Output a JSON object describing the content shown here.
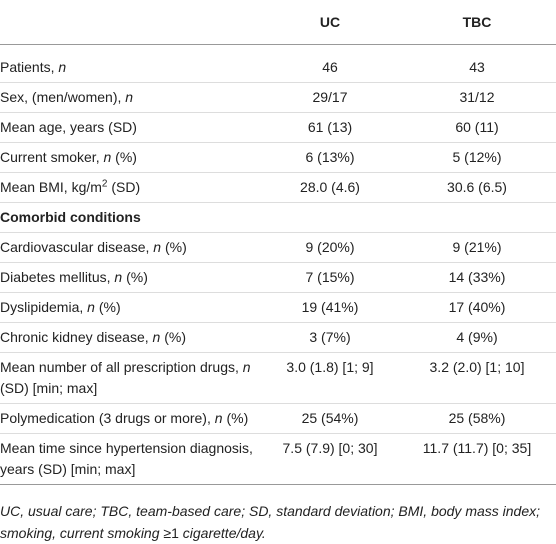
{
  "table": {
    "columns": [
      "UC",
      "TBC"
    ],
    "rows": [
      {
        "label": [
          {
            "text": "Patients, "
          },
          {
            "text": "n",
            "italic": true
          }
        ],
        "values": [
          "46",
          "43"
        ]
      },
      {
        "label": [
          {
            "text": "Sex, (men/women), "
          },
          {
            "text": "n",
            "italic": true
          }
        ],
        "values": [
          "29/17",
          "31/12"
        ]
      },
      {
        "label": [
          {
            "text": "Mean age, years (SD)"
          }
        ],
        "values": [
          "61 (13)",
          "60 (11)"
        ]
      },
      {
        "label": [
          {
            "text": "Current smoker, "
          },
          {
            "text": "n",
            "italic": true
          },
          {
            "text": " (%)"
          }
        ],
        "values": [
          "6 (13%)",
          "5 (12%)"
        ]
      },
      {
        "label": [
          {
            "text": "Mean BMI, kg/m"
          },
          {
            "text": "2",
            "sup": true
          },
          {
            "text": " (SD)"
          }
        ],
        "values": [
          "28.0 (4.6)",
          "30.6 (6.5)"
        ]
      },
      {
        "label": [
          {
            "text": "Comorbid conditions",
            "bold": true
          }
        ],
        "values": []
      },
      {
        "label": [
          {
            "text": "Cardiovascular disease, "
          },
          {
            "text": "n",
            "italic": true
          },
          {
            "text": " (%)"
          }
        ],
        "values": [
          "9 (20%)",
          "9 (21%)"
        ]
      },
      {
        "label": [
          {
            "text": "Diabetes mellitus, "
          },
          {
            "text": "n",
            "italic": true
          },
          {
            "text": " (%)"
          }
        ],
        "values": [
          "7 (15%)",
          "14 (33%)"
        ]
      },
      {
        "label": [
          {
            "text": "Dyslipidemia, "
          },
          {
            "text": "n",
            "italic": true
          },
          {
            "text": " (%)"
          }
        ],
        "values": [
          "19 (41%)",
          "17 (40%)"
        ]
      },
      {
        "label": [
          {
            "text": "Chronic kidney disease, "
          },
          {
            "text": "n",
            "italic": true
          },
          {
            "text": " (%)"
          }
        ],
        "values": [
          "3 (7%)",
          "4 (9%)"
        ]
      },
      {
        "label": [
          {
            "text": "Mean number of all prescription drugs, "
          },
          {
            "text": "n",
            "italic": true
          },
          {
            "text": " (SD) [min; max]"
          }
        ],
        "values": [
          "3.0 (1.8) [1; 9]",
          "3.2 (2.0) [1; 10]"
        ]
      },
      {
        "label": [
          {
            "text": "Polymedication (3 drugs or more), "
          },
          {
            "text": "n",
            "italic": true
          },
          {
            "text": " (%)"
          }
        ],
        "values": [
          "25 (54%)",
          "25 (58%)"
        ]
      },
      {
        "label": [
          {
            "text": "Mean time since hypertension diagnosis, years (SD) [min; max]"
          }
        ],
        "values": [
          "7.5 (7.9) [0; 30]",
          "11.7 (11.7) [0; 35]"
        ]
      }
    ],
    "footnote": [
      {
        "text": "UC, usual care; TBC, team-based care; SD, standard deviation; BMI, body mass index; smoking, current smoking ",
        "italic": true
      },
      {
        "text": "≥1"
      },
      {
        "text": " cigarette/day.",
        "italic": true
      }
    ]
  }
}
